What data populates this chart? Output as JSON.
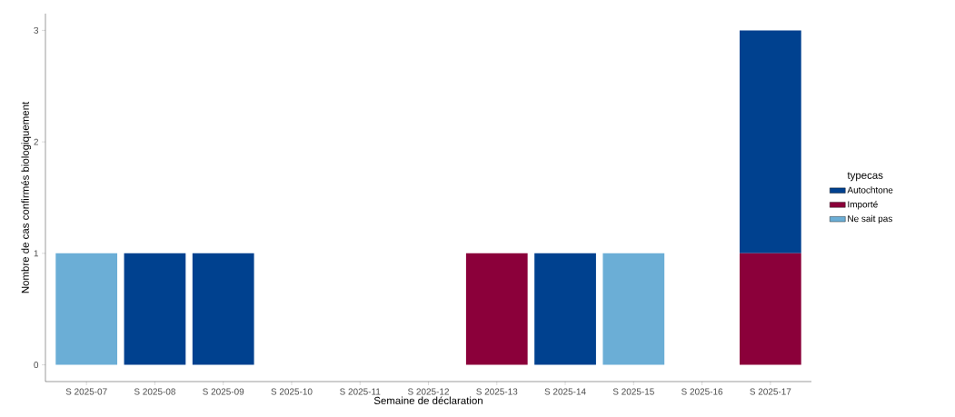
{
  "chart_data": {
    "type": "bar",
    "stacked": true,
    "xlabel": "Semaine de déclaration",
    "ylabel": "Nombre de cas confirmés biologiquement",
    "legend_title": "typecas",
    "legend": "right",
    "grid": false,
    "categories": [
      "S 2025-07",
      "S 2025-08",
      "S 2025-09",
      "S 2025-10",
      "S 2025-11",
      "S 2025-12",
      "S 2025-13",
      "S 2025-14",
      "S 2025-15",
      "S 2025-16",
      "S 2025-17"
    ],
    "ylim": [
      -0.15,
      3.15
    ],
    "yticks": [
      0,
      1,
      2,
      3
    ],
    "series": [
      {
        "name": "Ne sait pas",
        "color": "#6baed6",
        "values": [
          1,
          0,
          0,
          0,
          0,
          0,
          0,
          0,
          1,
          0,
          0
        ]
      },
      {
        "name": "Importé",
        "color": "#8b003a",
        "values": [
          0,
          0,
          0,
          0,
          0,
          0,
          1,
          0,
          0,
          0,
          1
        ]
      },
      {
        "name": "Autochtone",
        "color": "#00418f",
        "values": [
          0,
          1,
          1,
          0,
          0,
          0,
          0,
          1,
          0,
          0,
          2
        ]
      }
    ]
  }
}
